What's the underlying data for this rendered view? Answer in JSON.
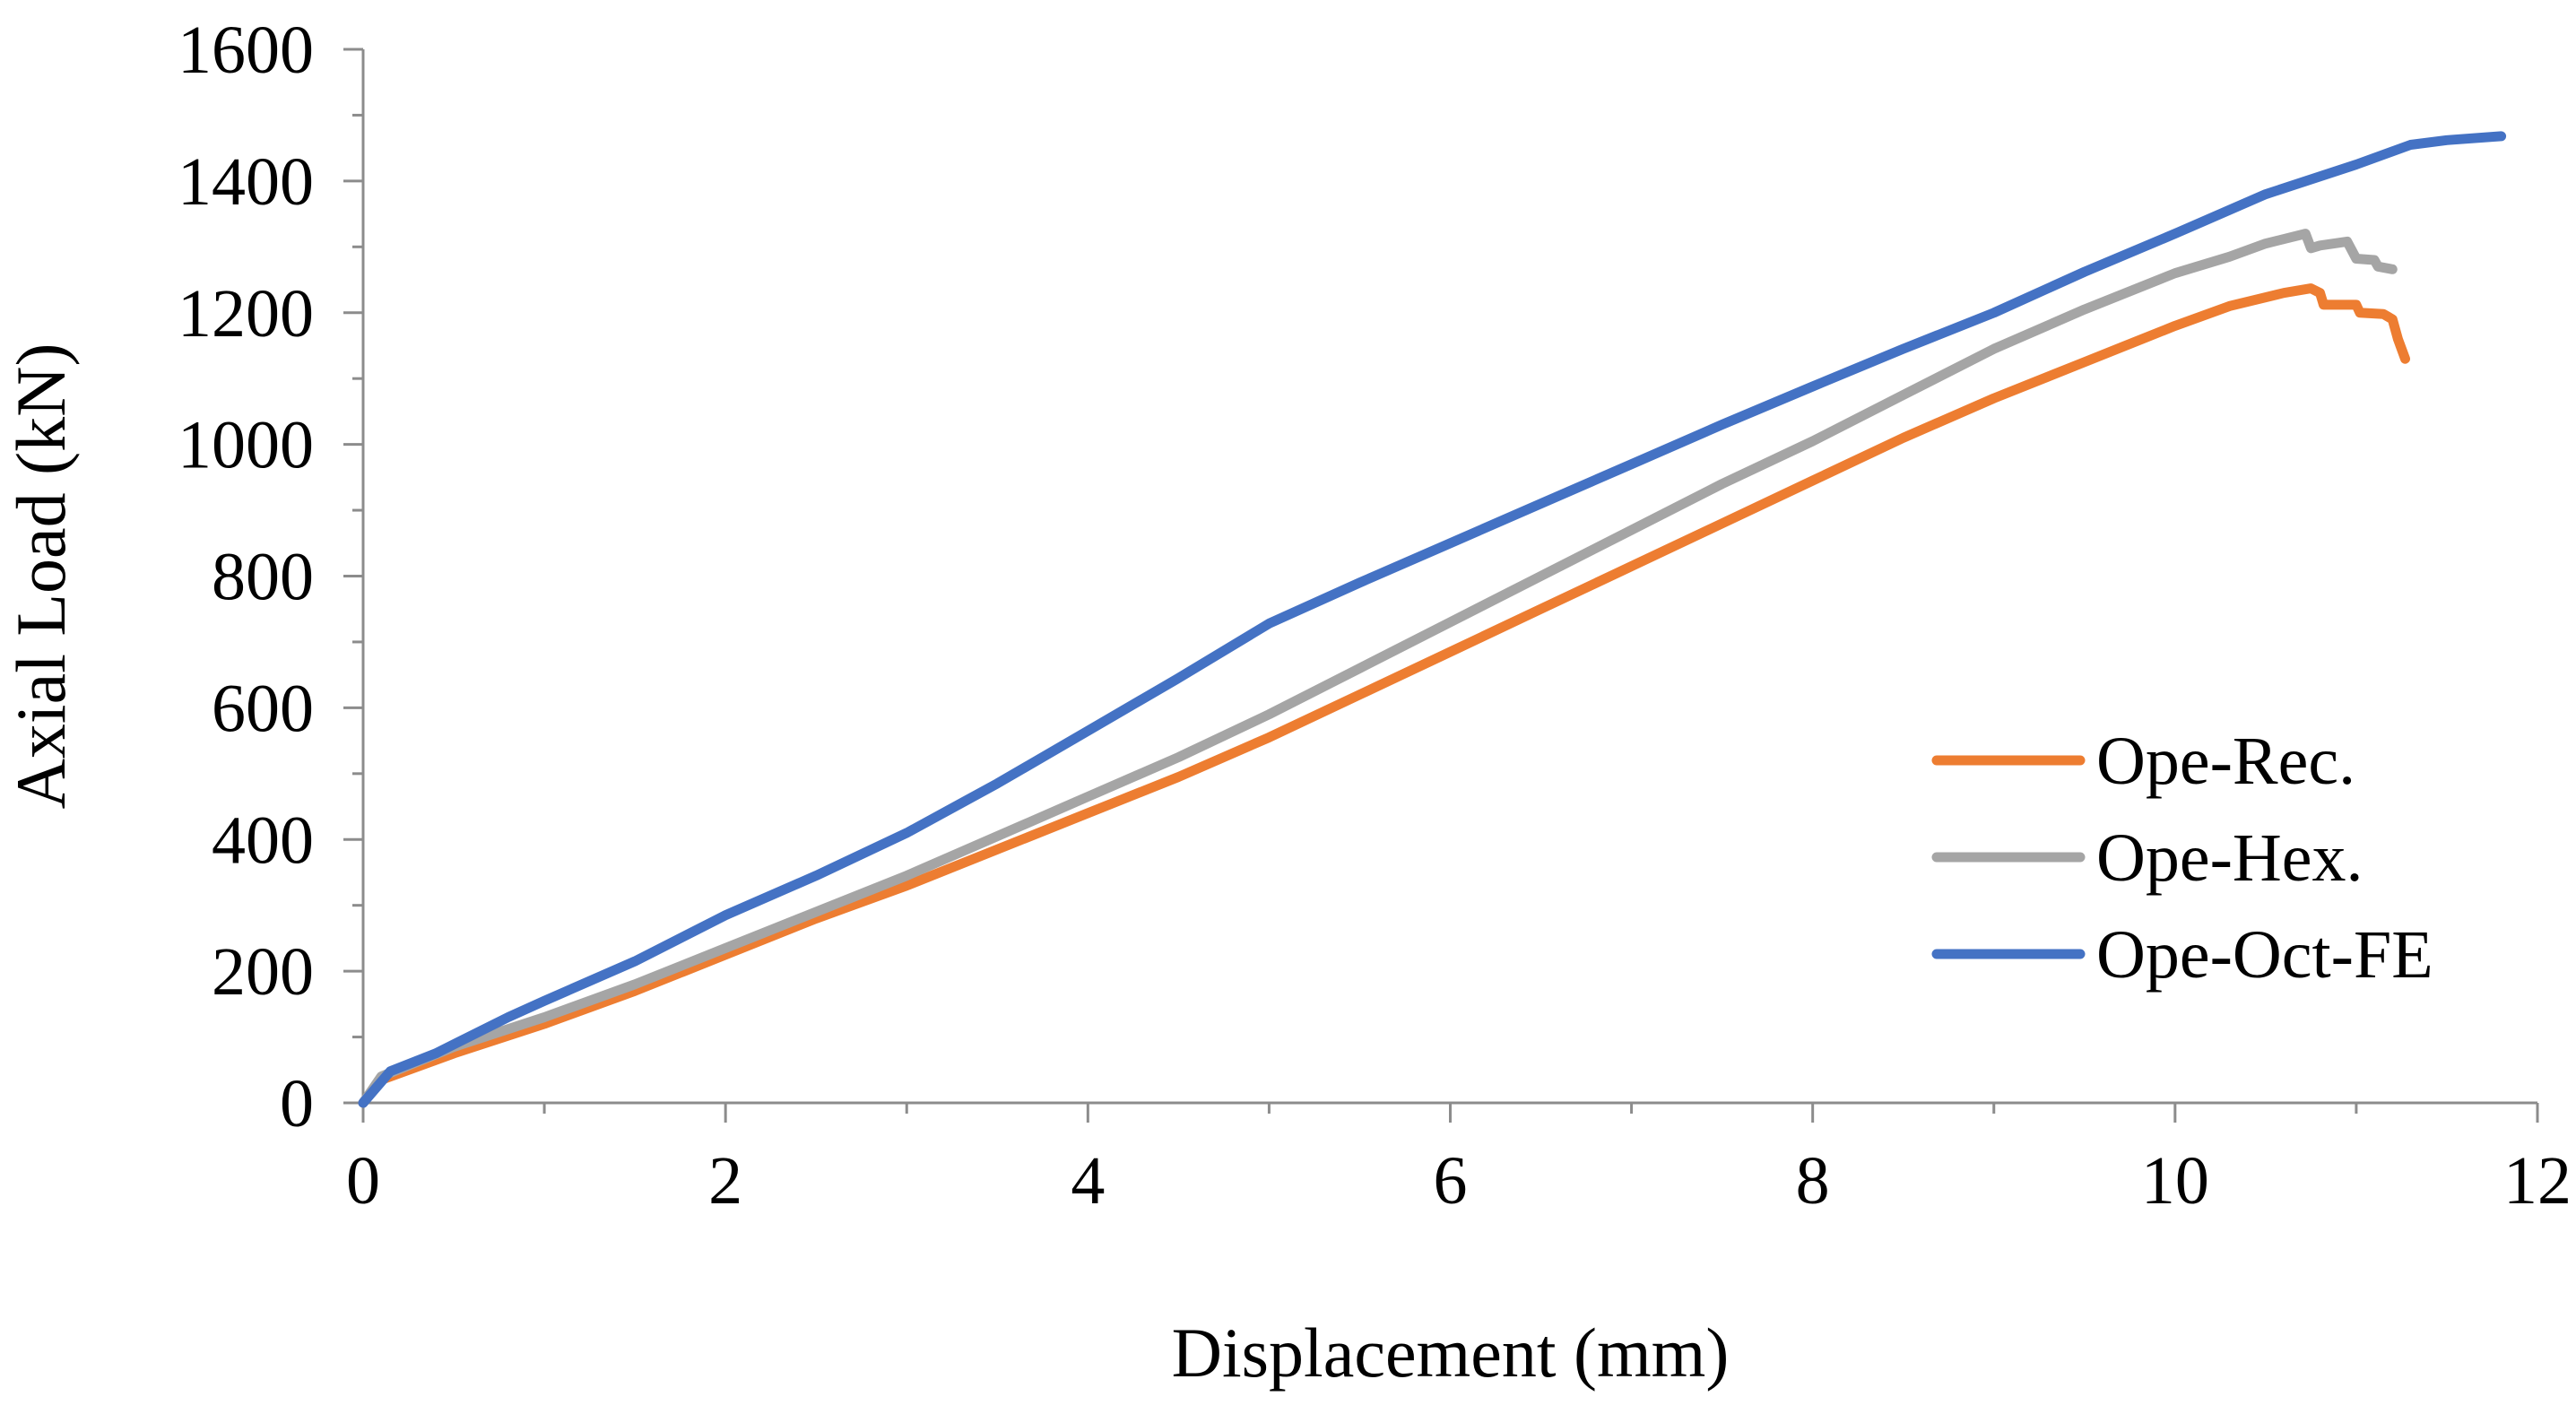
{
  "chart_data": {
    "type": "line",
    "title": "",
    "xlabel": "Displacement (mm)",
    "ylabel": "Axial Load (kN)",
    "xlim": [
      0,
      12
    ],
    "ylim": [
      0,
      1600
    ],
    "x_ticks": [
      0,
      2,
      4,
      6,
      8,
      10,
      12
    ],
    "y_ticks": [
      0,
      200,
      400,
      600,
      800,
      1000,
      1200,
      1400,
      1600
    ],
    "x_tick_labels": [
      "0",
      "2",
      "4",
      "6",
      "8",
      "10",
      "12"
    ],
    "y_tick_labels": [
      "0",
      "200",
      "400",
      "600",
      "800",
      "1000",
      "1200",
      "1400",
      "1600"
    ],
    "grid": false,
    "legend_position": "right",
    "series": [
      {
        "name": "Ope-Rec.",
        "color": "#ed7d31",
        "points": [
          [
            0,
            0
          ],
          [
            0.1,
            35
          ],
          [
            0.5,
            75
          ],
          [
            1,
            120
          ],
          [
            1.5,
            170
          ],
          [
            2,
            225
          ],
          [
            2.5,
            280
          ],
          [
            3,
            330
          ],
          [
            3.5,
            385
          ],
          [
            4,
            440
          ],
          [
            4.5,
            495
          ],
          [
            5,
            555
          ],
          [
            5.5,
            620
          ],
          [
            6,
            685
          ],
          [
            6.5,
            750
          ],
          [
            7,
            815
          ],
          [
            7.5,
            880
          ],
          [
            8,
            945
          ],
          [
            8.5,
            1010
          ],
          [
            9,
            1070
          ],
          [
            9.5,
            1125
          ],
          [
            10,
            1180
          ],
          [
            10.3,
            1210
          ],
          [
            10.6,
            1230
          ],
          [
            10.75,
            1237
          ],
          [
            10.8,
            1230
          ],
          [
            10.82,
            1212
          ],
          [
            11,
            1212
          ],
          [
            11.02,
            1200
          ],
          [
            11.15,
            1198
          ],
          [
            11.2,
            1190
          ],
          [
            11.23,
            1160
          ],
          [
            11.27,
            1130
          ]
        ]
      },
      {
        "name": "Ope-Hex.",
        "color": "#a5a5a5",
        "points": [
          [
            0,
            0
          ],
          [
            0.1,
            40
          ],
          [
            0.5,
            85
          ],
          [
            1,
            130
          ],
          [
            1.5,
            180
          ],
          [
            2,
            235
          ],
          [
            2.5,
            290
          ],
          [
            3,
            345
          ],
          [
            3.5,
            405
          ],
          [
            4,
            465
          ],
          [
            4.5,
            525
          ],
          [
            5,
            590
          ],
          [
            5.5,
            660
          ],
          [
            6,
            730
          ],
          [
            6.5,
            800
          ],
          [
            7,
            870
          ],
          [
            7.5,
            940
          ],
          [
            8,
            1005
          ],
          [
            8.5,
            1075
          ],
          [
            9,
            1145
          ],
          [
            9.5,
            1205
          ],
          [
            10,
            1260
          ],
          [
            10.3,
            1285
          ],
          [
            10.5,
            1305
          ],
          [
            10.72,
            1320
          ],
          [
            10.75,
            1298
          ],
          [
            10.8,
            1302
          ],
          [
            10.95,
            1308
          ],
          [
            11,
            1282
          ],
          [
            11.1,
            1280
          ],
          [
            11.12,
            1270
          ],
          [
            11.2,
            1266
          ]
        ]
      },
      {
        "name": "Ope-Oct-FE",
        "color": "#4472c4",
        "points": [
          [
            0,
            0
          ],
          [
            0.15,
            48
          ],
          [
            0.4,
            75
          ],
          [
            0.8,
            130
          ],
          [
            1,
            155
          ],
          [
            1.5,
            215
          ],
          [
            2,
            285
          ],
          [
            2.5,
            345
          ],
          [
            3,
            410
          ],
          [
            3.5,
            485
          ],
          [
            4,
            565
          ],
          [
            4.5,
            645
          ],
          [
            5,
            728
          ],
          [
            5.5,
            790
          ],
          [
            6,
            850
          ],
          [
            6.5,
            910
          ],
          [
            7,
            970
          ],
          [
            7.5,
            1030
          ],
          [
            8,
            1088
          ],
          [
            8.5,
            1145
          ],
          [
            9,
            1200
          ],
          [
            9.5,
            1262
          ],
          [
            10,
            1320
          ],
          [
            10.5,
            1380
          ],
          [
            11,
            1425
          ],
          [
            11.3,
            1455
          ],
          [
            11.5,
            1462
          ],
          [
            11.8,
            1468
          ]
        ]
      }
    ]
  }
}
